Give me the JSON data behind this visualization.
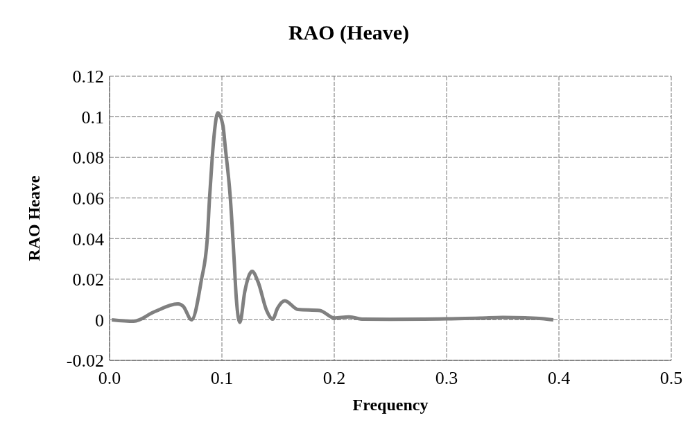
{
  "chart_data": {
    "type": "line",
    "title": "RAO (Heave)",
    "xlabel": "Frequency",
    "ylabel": "RAO Heave",
    "x": [
      0.002,
      0.0215,
      0.04,
      0.061,
      0.0655,
      0.073,
      0.0817,
      0.087,
      0.089,
      0.0914,
      0.0935,
      0.0963,
      0.101,
      0.103,
      0.1075,
      0.1107,
      0.1129,
      0.116,
      0.1204,
      0.1269,
      0.1323,
      0.1398,
      0.1452,
      0.1495,
      0.156,
      0.1677,
      0.187,
      0.2,
      0.213,
      0.226,
      0.25,
      0.28,
      0.3,
      0.33,
      0.35,
      0.37,
      0.385,
      0.395
    ],
    "series": [
      {
        "color": "#808080",
        "values": [
          0,
          -0.0007,
          0.004,
          0.0078,
          0.0067,
          0,
          0.0195,
          0.04,
          0.06,
          0.08,
          0.0933,
          0.102,
          0.0955,
          0.085,
          0.06,
          0.0313,
          0.01,
          -0.0013,
          0.014,
          0.0239,
          0.0185,
          0.0046,
          0.0003,
          0.0057,
          0.0094,
          0.0051,
          0.0046,
          0.0009,
          0.0014,
          0.0003,
          0.0002,
          0.0003,
          0.0005,
          0.0008,
          0.0012,
          0.001,
          0.0006,
          0
        ]
      }
    ],
    "xlim": [
      0,
      0.5
    ],
    "xticks": [
      {
        "value": 0,
        "label": "0.0"
      },
      {
        "value": 0.1,
        "label": "0.1"
      },
      {
        "value": 0.2,
        "label": "0.2"
      },
      {
        "value": 0.3,
        "label": "0.3"
      },
      {
        "value": 0.4,
        "label": "0.4"
      },
      {
        "value": 0.5,
        "label": "0.5"
      }
    ],
    "ylim": [
      -0.02,
      0.12
    ],
    "yticks": [
      -0.02,
      0,
      0.02,
      0.04,
      0.06,
      0.08,
      0.1,
      0.12
    ],
    "grid": true,
    "legend": false,
    "marker": "none",
    "line_style": "solid"
  }
}
